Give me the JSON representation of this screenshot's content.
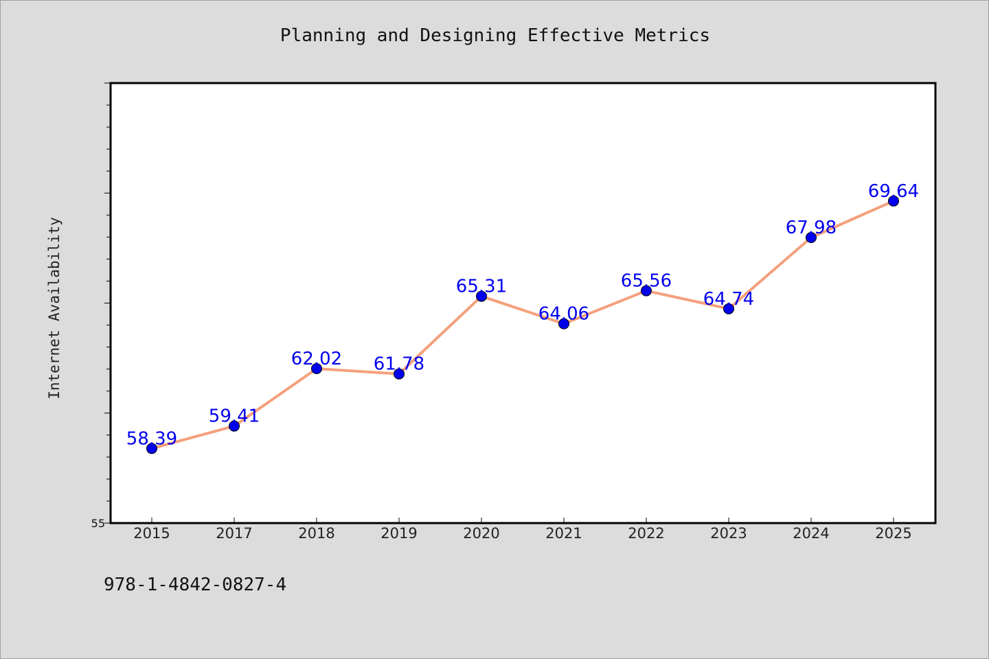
{
  "chart_data": {
    "type": "line",
    "title": "Planning and Designing Effective Metrics",
    "xlabel": "",
    "ylabel": "Internet Availability",
    "categories": [
      "2015",
      "2017",
      "2018",
      "2019",
      "2020",
      "2021",
      "2022",
      "2023",
      "2024",
      "2025"
    ],
    "series": [
      {
        "values": [
          58.39,
          59.41,
          62.02,
          61.78,
          65.31,
          64.06,
          65.56,
          64.74,
          67.98,
          69.64
        ],
        "line_color": "#f4a07c",
        "marker_color": "#0000ee",
        "label_color": "#0000ee"
      }
    ],
    "ylim": [
      55,
      75
    ],
    "yticks_labeled": [
      "55"
    ],
    "grid": false,
    "legend": "none"
  },
  "footer": {
    "isbn": "978-1-4842-0827-4"
  }
}
